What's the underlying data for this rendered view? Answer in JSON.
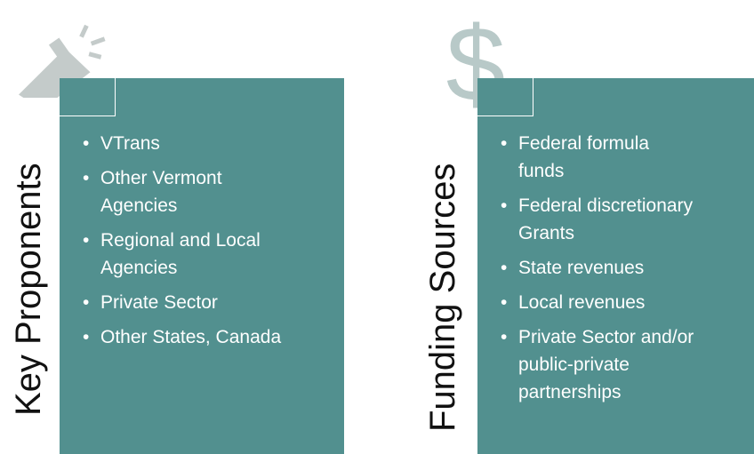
{
  "panels": [
    {
      "title": "Key Proponents",
      "items": [
        [
          "VTrans"
        ],
        [
          "Other Vermont",
          "Agencies"
        ],
        [
          "Regional and Local",
          "Agencies"
        ],
        [
          "Private Sector"
        ],
        [
          "Other States, Canada"
        ]
      ]
    },
    {
      "title": "Funding Sources",
      "items": [
        [
          "Federal formula",
          "funds"
        ],
        [
          "Federal discretionary",
          "Grants"
        ],
        [
          "State revenues"
        ],
        [
          "Local revenues"
        ],
        [
          "Private Sector and/or",
          "public-private",
          "partnerships"
        ]
      ]
    }
  ]
}
